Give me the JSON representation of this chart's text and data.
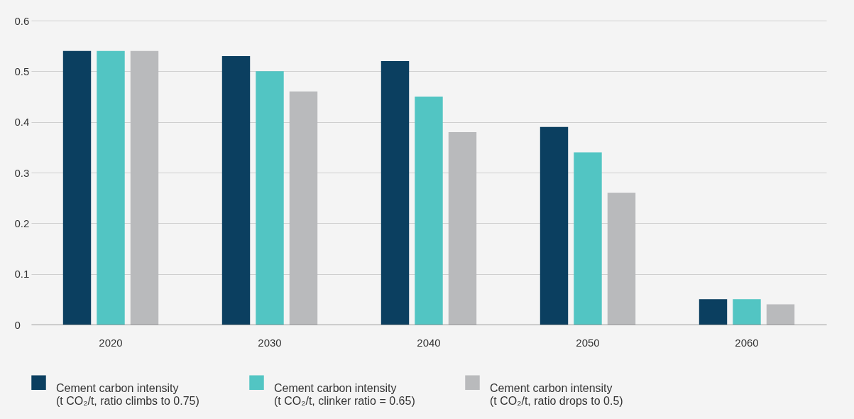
{
  "chart_data": {
    "type": "bar",
    "categories": [
      "2020",
      "2030",
      "2040",
      "2050",
      "2060"
    ],
    "series": [
      {
        "name": "Cement carbon intensity\n(t CO₂/t, ratio climbs to 0.75)",
        "color": "#0b3f60",
        "values": [
          0.54,
          0.53,
          0.52,
          0.39,
          0.05
        ]
      },
      {
        "name": "Cement carbon intensity\n(t CO₂/t, clinker ratio = 0.65)",
        "color": "#52c5c3",
        "values": [
          0.54,
          0.5,
          0.45,
          0.34,
          0.05
        ]
      },
      {
        "name": "Cement carbon intensity\n(t CO₂/t, ratio drops to 0.5)",
        "color": "#b9babc",
        "values": [
          0.54,
          0.46,
          0.38,
          0.26,
          0.04
        ]
      }
    ],
    "ylim": [
      0,
      0.6
    ],
    "yticks": [
      0,
      0.1,
      0.2,
      0.3,
      0.4,
      0.5,
      0.6
    ],
    "grid": "y",
    "legend": "bottom"
  }
}
